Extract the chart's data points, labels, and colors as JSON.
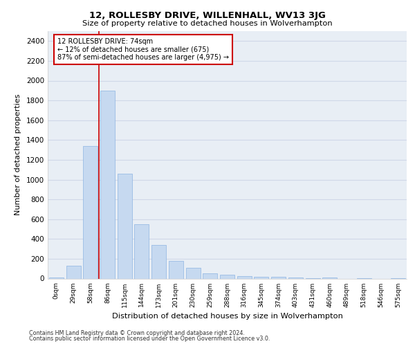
{
  "title": "12, ROLLESBY DRIVE, WILLENHALL, WV13 3JG",
  "subtitle": "Size of property relative to detached houses in Wolverhampton",
  "xlabel": "Distribution of detached houses by size in Wolverhampton",
  "ylabel": "Number of detached properties",
  "categories": [
    "0sqm",
    "29sqm",
    "58sqm",
    "86sqm",
    "115sqm",
    "144sqm",
    "173sqm",
    "201sqm",
    "230sqm",
    "259sqm",
    "288sqm",
    "316sqm",
    "345sqm",
    "374sqm",
    "403sqm",
    "431sqm",
    "460sqm",
    "489sqm",
    "518sqm",
    "546sqm",
    "575sqm"
  ],
  "values": [
    10,
    130,
    1340,
    1900,
    1060,
    550,
    340,
    180,
    110,
    55,
    35,
    25,
    20,
    15,
    10,
    5,
    10,
    0,
    5,
    0,
    5
  ],
  "bar_color": "#c6d9f0",
  "bar_edge_color": "#8db4e2",
  "vline_color": "#cc0000",
  "annotation_text": "12 ROLLESBY DRIVE: 74sqm\n← 12% of detached houses are smaller (675)\n87% of semi-detached houses are larger (4,975) →",
  "annotation_box_color": "#ffffff",
  "annotation_box_edge": "#cc0000",
  "grid_color": "#d0d8e8",
  "bg_color": "#e8eef5",
  "ylim": [
    0,
    2500
  ],
  "yticks": [
    0,
    200,
    400,
    600,
    800,
    1000,
    1200,
    1400,
    1600,
    1800,
    2000,
    2200,
    2400
  ],
  "footer_line1": "Contains HM Land Registry data © Crown copyright and database right 2024.",
  "footer_line2": "Contains public sector information licensed under the Open Government Licence v3.0."
}
